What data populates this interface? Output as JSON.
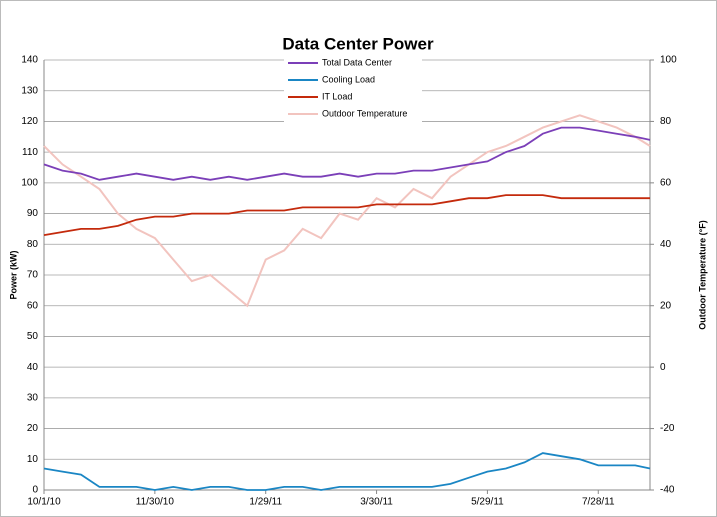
{
  "chart_data": {
    "type": "line",
    "title": "Data Center Power",
    "y_label": "Power (kW)",
    "y2_label": "Outdoor Temperature (°F)",
    "x": [
      "2010-10-01",
      "2010-10-11",
      "2010-10-21",
      "2010-10-31",
      "2010-11-10",
      "2010-11-20",
      "2010-11-30",
      "2010-12-10",
      "2010-12-20",
      "2010-12-30",
      "2011-01-09",
      "2011-01-19",
      "2011-01-29",
      "2011-02-08",
      "2011-02-18",
      "2011-02-28",
      "2011-03-10",
      "2011-03-20",
      "2011-03-30",
      "2011-04-09",
      "2011-04-19",
      "2011-04-29",
      "2011-05-09",
      "2011-05-19",
      "2011-05-29",
      "2011-06-08",
      "2011-06-18",
      "2011-06-28",
      "2011-07-08",
      "2011-07-18",
      "2011-07-28",
      "2011-08-07",
      "2011-08-17",
      "2011-08-25"
    ],
    "series": [
      {
        "name": "Total Data Center",
        "color": "#7b3fb8",
        "values": [
          106,
          104,
          103,
          101,
          102,
          103,
          102,
          101,
          102,
          101,
          102,
          101,
          102,
          103,
          102,
          102,
          103,
          102,
          103,
          103,
          104,
          104,
          105,
          106,
          107,
          110,
          112,
          116,
          118,
          118,
          117,
          116,
          115,
          114
        ]
      },
      {
        "name": "Cooling Load",
        "color": "#1a86c4",
        "values": [
          7,
          6,
          5,
          1,
          1,
          1,
          0,
          1,
          0,
          1,
          1,
          0,
          0,
          1,
          1,
          0,
          1,
          1,
          1,
          1,
          1,
          1,
          2,
          4,
          6,
          7,
          9,
          12,
          11,
          10,
          8,
          8,
          8,
          7
        ]
      },
      {
        "name": "IT Load",
        "color": "#c42a0c",
        "values": [
          83,
          84,
          85,
          85,
          86,
          88,
          89,
          89,
          90,
          90,
          90,
          91,
          91,
          91,
          92,
          92,
          92,
          92,
          93,
          93,
          93,
          93,
          94,
          95,
          95,
          96,
          96,
          96,
          95,
          95,
          95,
          95,
          95,
          95
        ]
      },
      {
        "name": "Outdoor Temperature",
        "color": "#f2c4bf",
        "axis": "y2",
        "values": [
          72,
          66,
          62,
          58,
          50,
          45,
          42,
          35,
          28,
          30,
          25,
          20,
          35,
          38,
          45,
          42,
          50,
          48,
          55,
          52,
          58,
          55,
          62,
          66,
          70,
          72,
          75,
          78,
          80,
          82,
          80,
          78,
          75,
          72
        ]
      }
    ],
    "xlim": [
      "2010-10-01",
      "2011-08-25"
    ],
    "xticks": [
      {
        "value": "2010-10-01",
        "label": "10/1/10"
      },
      {
        "value": "2010-11-30",
        "label": "11/30/10"
      },
      {
        "value": "2011-01-29",
        "label": "1/29/11"
      },
      {
        "value": "2011-03-30",
        "label": "3/30/11"
      },
      {
        "value": "2011-05-29",
        "label": "5/29/11"
      },
      {
        "value": "2011-07-28",
        "label": "7/28/11"
      }
    ],
    "ylim": [
      0,
      140
    ],
    "yticks": [
      0,
      10,
      20,
      30,
      40,
      50,
      60,
      70,
      80,
      90,
      100,
      110,
      120,
      130,
      140
    ],
    "y2lim": [
      -40,
      100
    ],
    "y2ticks": [
      -40,
      -20,
      0,
      20,
      40,
      60,
      80,
      100
    ],
    "grid": true,
    "legend": "top"
  }
}
